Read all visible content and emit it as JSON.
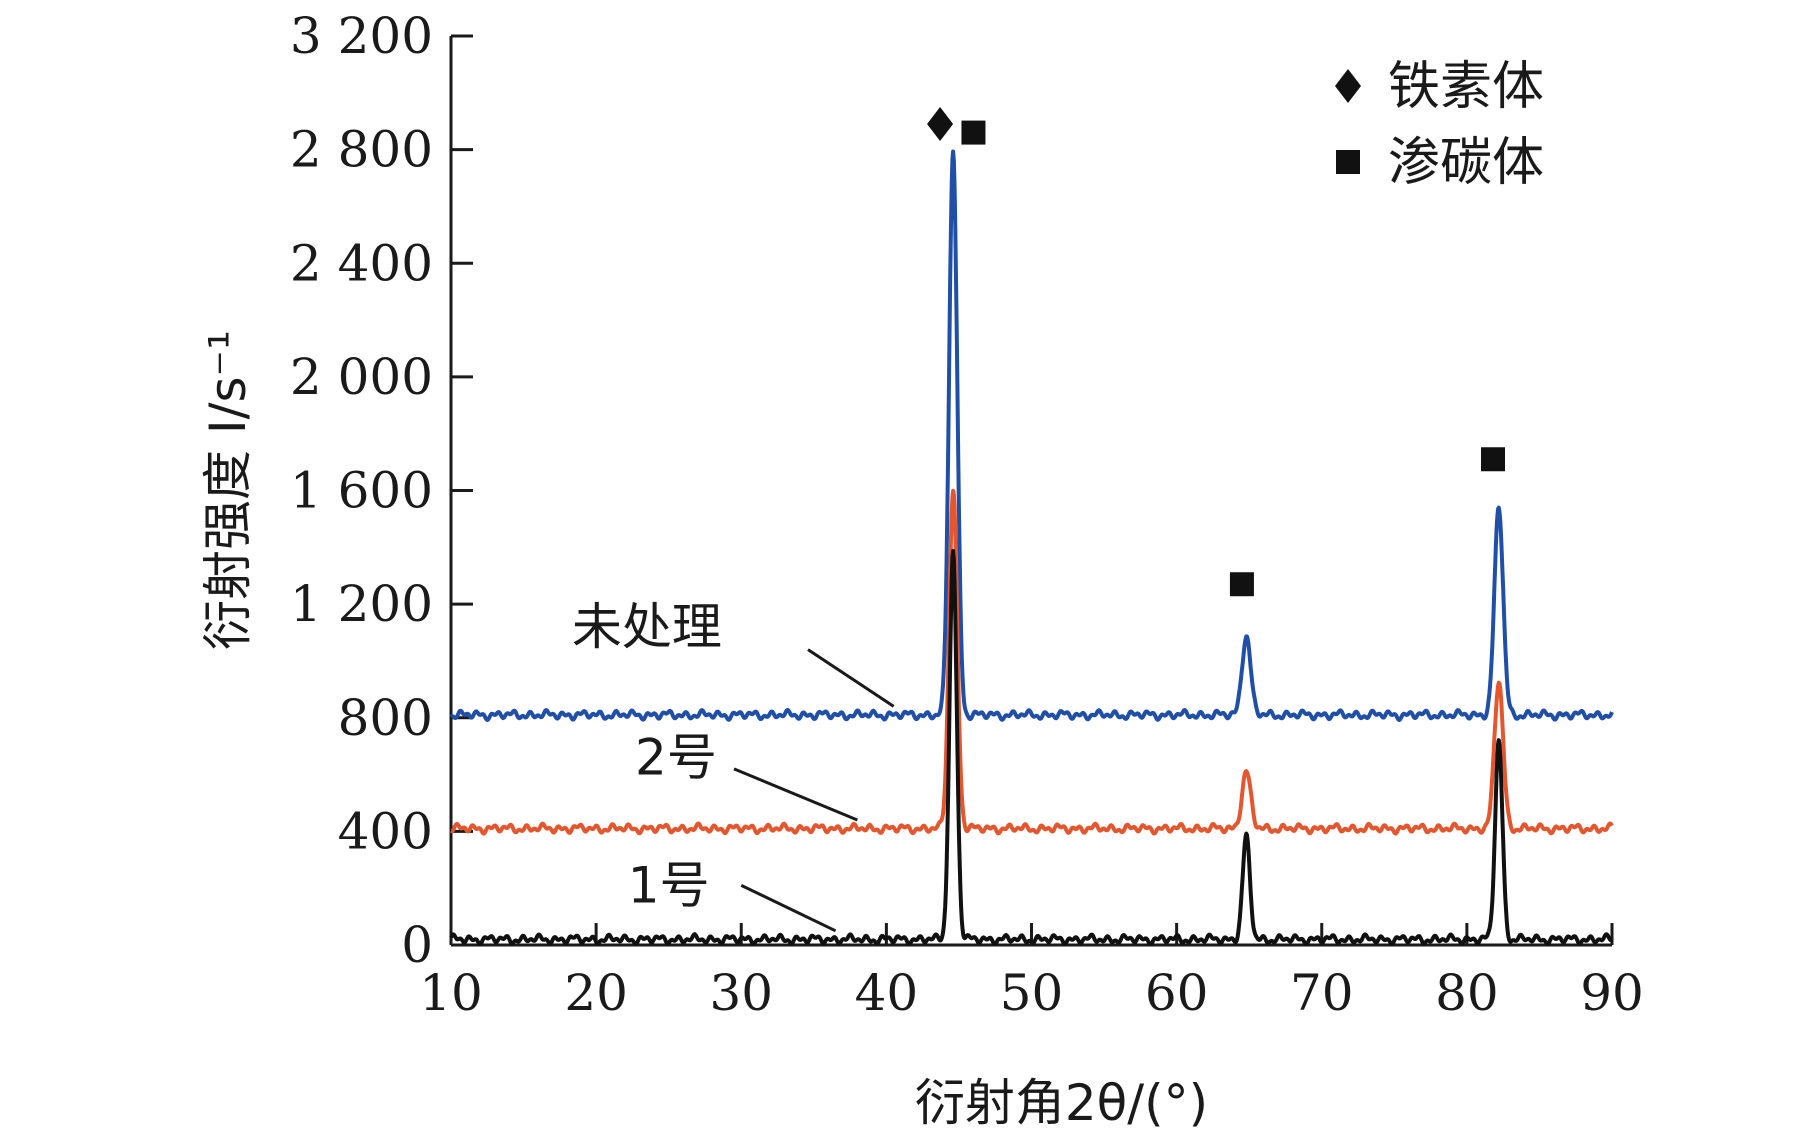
{
  "chart_data": {
    "type": "line",
    "xlabel": "衍射角2θ/(°)",
    "ylabel": "衍射强度 I/s⁻¹",
    "xlim": [
      10,
      90
    ],
    "ylim": [
      0,
      3200
    ],
    "xticks": [
      "10",
      "20",
      "30",
      "40",
      "50",
      "60",
      "70",
      "80",
      "90"
    ],
    "yticks": [
      "0",
      "400",
      "800",
      "1 200",
      "1 600",
      "2 000",
      "2 400",
      "2 800",
      "3 200"
    ],
    "grid": false,
    "legend": {
      "placement": "top-right",
      "entries": [
        {
          "label": "铁素体",
          "marker": "diamond"
        },
        {
          "label": "渗碳体",
          "marker": "square"
        }
      ]
    },
    "series": [
      {
        "name": "未处理",
        "color": "#1f4fa6",
        "baseline": 810,
        "peaks": [
          [
            44.6,
            2800,
            0.28
          ],
          [
            64.8,
            1090,
            0.3
          ],
          [
            82.2,
            1540,
            0.3
          ]
        ]
      },
      {
        "name": "2号",
        "color": "#e4572e",
        "baseline": 410,
        "peaks": [
          [
            44.6,
            1600,
            0.28
          ],
          [
            64.8,
            610,
            0.3
          ],
          [
            82.2,
            930,
            0.3
          ]
        ]
      },
      {
        "name": "1号",
        "color": "#111111",
        "baseline": 20,
        "peaks": [
          [
            44.6,
            1380,
            0.25
          ],
          [
            64.8,
            380,
            0.25
          ],
          [
            82.2,
            720,
            0.25
          ]
        ]
      }
    ],
    "annotations": [
      {
        "marker": "diamond",
        "x": 43.7,
        "y": 2890
      },
      {
        "marker": "square",
        "x": 46.0,
        "y": 2860
      },
      {
        "marker": "square",
        "x": 64.5,
        "y": 1270
      },
      {
        "marker": "square",
        "x": 81.8,
        "y": 1710
      }
    ],
    "series_labels": [
      {
        "text": "未处理",
        "text_x": 23.5,
        "text_y": 1060,
        "line_from": [
          34.6,
          1040
        ],
        "line_to": [
          40.5,
          840
        ]
      },
      {
        "text": "2号",
        "text_x": 25.5,
        "text_y": 600,
        "line_from": [
          29.5,
          620
        ],
        "line_to": [
          38.0,
          440
        ]
      },
      {
        "text": "1号",
        "text_x": 25.0,
        "text_y": 150,
        "line_from": [
          30.0,
          210
        ],
        "line_to": [
          36.5,
          50
        ]
      }
    ]
  }
}
